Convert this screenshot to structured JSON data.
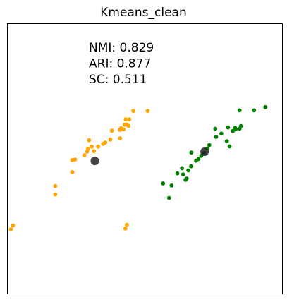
{
  "chart_data": {
    "type": "scatter",
    "title": "Kmeans_clean",
    "xlabel": "",
    "ylabel": "",
    "xlim": [
      0,
      100
    ],
    "ylim": [
      0,
      100
    ],
    "ticks": "none",
    "grid": false,
    "annotations": [
      "NMI: 0.829",
      "ARI: 0.877",
      "SC: 0.511"
    ],
    "colors": {
      "cluster_a": "#FFA500",
      "cluster_b": "#008000",
      "centroid": "#222222"
    },
    "series": [
      {
        "color": "#FFA500",
        "points": [
          [
            1.3,
            23.9
          ],
          [
            2.0,
            25.3
          ],
          [
            17.4,
            36.8
          ],
          [
            17.4,
            39.9
          ],
          [
            23.6,
            45.1
          ],
          [
            23.6,
            49.5
          ],
          [
            24.6,
            49.7
          ],
          [
            28.0,
            51.3
          ],
          [
            29.0,
            52.6
          ],
          [
            29.7,
            56.9
          ],
          [
            29.3,
            53.7
          ],
          [
            31.5,
            52.8
          ],
          [
            30.7,
            54.5
          ],
          [
            33.0,
            54.5
          ],
          [
            34.8,
            55.5
          ],
          [
            35.6,
            56.0
          ],
          [
            37.4,
            57.1
          ],
          [
            38.0,
            60.4
          ],
          [
            40.9,
            60.7
          ],
          [
            42.7,
            62.6
          ],
          [
            41.3,
            61.3
          ],
          [
            42.2,
            60.9
          ],
          [
            43.3,
            62.7
          ],
          [
            43.0,
            64.6
          ],
          [
            44.0,
            62.2
          ],
          [
            44.3,
            64.6
          ],
          [
            41.0,
            57.6
          ],
          [
            45.8,
            67.7
          ],
          [
            51.0,
            67.7
          ],
          [
            43.4,
            25.6
          ],
          [
            42.9,
            24.2
          ]
        ]
      },
      {
        "color": "#008000",
        "points": [
          [
            56.6,
            40.9
          ],
          [
            58.8,
            35.5
          ],
          [
            59.7,
            40.1
          ],
          [
            61.8,
            44.6
          ],
          [
            63.5,
            46.5
          ],
          [
            63.9,
            44.2
          ],
          [
            64.8,
            42.2
          ],
          [
            65.2,
            42.7
          ],
          [
            65.8,
            45.7
          ],
          [
            66.8,
            47.2
          ],
          [
            66.9,
            52.3
          ],
          [
            68.6,
            49.3
          ],
          [
            69.5,
            49.9
          ],
          [
            70.5,
            51.1
          ],
          [
            71.6,
            52.1
          ],
          [
            72.7,
            53.8
          ],
          [
            73.4,
            55.1
          ],
          [
            75.9,
            58.1
          ],
          [
            75.6,
            61.1
          ],
          [
            77.8,
            59.3
          ],
          [
            80.2,
            61.6
          ],
          [
            80.8,
            54.6
          ],
          [
            82.0,
            60.3
          ],
          [
            82.8,
            61.4
          ],
          [
            83.0,
            60.9
          ],
          [
            84.4,
            61.1
          ],
          [
            84.9,
            62.1
          ],
          [
            79.8,
            56.5
          ],
          [
            84.4,
            67.9
          ],
          [
            89.7,
            67.9
          ],
          [
            93.8,
            69.1
          ]
        ]
      }
    ],
    "centroids": [
      [
        31.8,
        49.2
      ],
      [
        71.7,
        52.6
      ]
    ]
  }
}
